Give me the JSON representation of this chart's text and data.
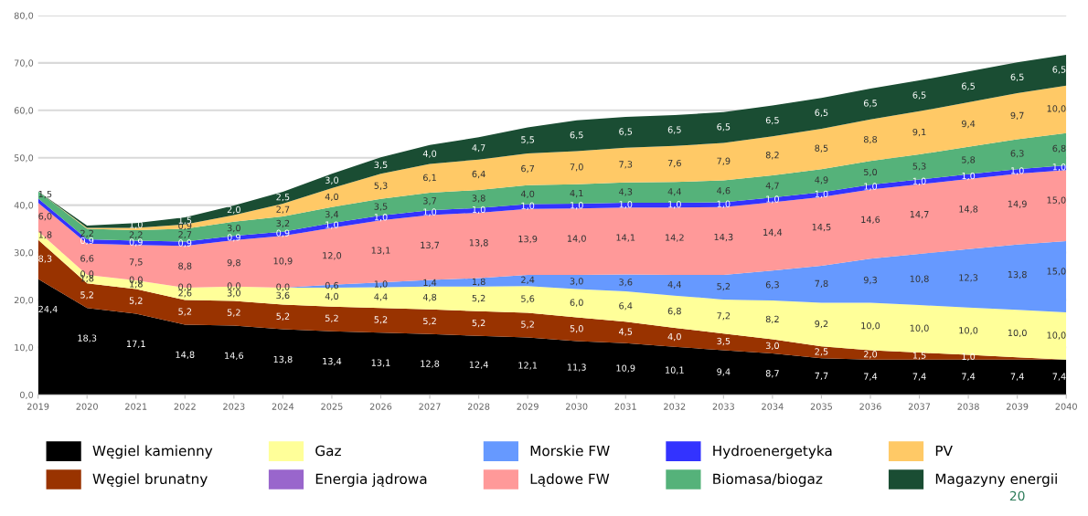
{
  "chart_data": {
    "type": "area",
    "stacked": true,
    "categories": [
      "2019",
      "2020",
      "2021",
      "2022",
      "2023",
      "2024",
      "2025",
      "2026",
      "2027",
      "2028",
      "2029",
      "2030",
      "2031",
      "2032",
      "2033",
      "2034",
      "2035",
      "2036",
      "2037",
      "2038",
      "2039",
      "2040"
    ],
    "ylim": [
      0,
      80
    ],
    "yticks": [
      {
        "value": 0,
        "label": "0,0"
      },
      {
        "value": 10,
        "label": "10,0"
      },
      {
        "value": 20,
        "label": "20,0"
      },
      {
        "value": 30,
        "label": "30,0"
      },
      {
        "value": 40,
        "label": "40,0"
      },
      {
        "value": 50,
        "label": "50,0"
      },
      {
        "value": 60,
        "label": "60,0"
      },
      {
        "value": 70,
        "label": "70,0"
      },
      {
        "value": 80,
        "label": "80,0"
      }
    ],
    "grid": "y",
    "legend": "bottom",
    "series": [
      {
        "name": "Węgiel kamienny",
        "color": "#000000",
        "values": [
          24.4,
          18.3,
          17.1,
          14.8,
          14.6,
          13.8,
          13.4,
          13.1,
          12.8,
          12.4,
          12.1,
          11.3,
          10.9,
          10.1,
          9.4,
          8.7,
          7.7,
          7.4,
          7.4,
          7.4,
          7.4,
          7.4
        ],
        "value_labels": [
          "24,4",
          "18,3",
          "17,1",
          "14,8",
          "14,6",
          "13,8",
          "13,4",
          "13,1",
          "12,8",
          "12,4",
          "12,1",
          "11,3",
          "10,9",
          "10,1",
          "9,4",
          "8,7",
          "7,7",
          "7,4",
          "7,4",
          "7,4",
          "7,4",
          "7,4"
        ]
      },
      {
        "name": "Węgiel brunatny",
        "color": "#993300",
        "values": [
          8.3,
          5.2,
          5.2,
          5.2,
          5.2,
          5.2,
          5.2,
          5.2,
          5.2,
          5.2,
          5.2,
          5.0,
          4.5,
          4.0,
          3.5,
          3.0,
          2.5,
          2.0,
          1.5,
          1.0,
          0.5,
          0.0
        ],
        "value_labels": [
          "8,3",
          "5,2",
          "5,2",
          "5,2",
          "5,2",
          "5,2",
          "5,2",
          "5,2",
          "5,2",
          "5,2",
          "5,2",
          "5,0",
          "4,5",
          "4,0",
          "3,5",
          "3,0",
          "2,5",
          "2,0",
          "1,5",
          "1,0",
          null,
          null
        ]
      },
      {
        "name": "Gaz",
        "color": "#ffff99",
        "values": [
          1.8,
          1.8,
          1.8,
          2.6,
          3.0,
          3.6,
          4.0,
          4.4,
          4.8,
          5.2,
          5.6,
          6.0,
          6.4,
          6.8,
          7.2,
          8.2,
          9.2,
          10.0,
          10.0,
          10.0,
          10.0,
          10.0
        ],
        "value_labels": [
          "1,8",
          "1,8",
          "1,8",
          "2,6",
          "3,0",
          "3,6",
          "4,0",
          "4,4",
          "4,8",
          "5,2",
          "5,6",
          "6,0",
          "6,4",
          "6,8",
          "7,2",
          "8,2",
          "9,2",
          "10,0",
          "10,0",
          "10,0",
          "10,0",
          "10,0"
        ]
      },
      {
        "name": "Energia jądrowa",
        "color": "#9966cc",
        "values": [
          null,
          null,
          null,
          null,
          null,
          null,
          null,
          null,
          null,
          null,
          null,
          null,
          null,
          null,
          null,
          null,
          null,
          null,
          null,
          null,
          null,
          null
        ],
        "value_labels": [
          null,
          null,
          null,
          null,
          null,
          null,
          null,
          null,
          null,
          null,
          null,
          null,
          null,
          null,
          null,
          null,
          null,
          null,
          null,
          null,
          null,
          null
        ]
      },
      {
        "name": "Morskie FW",
        "color": "#6699ff",
        "values": [
          0.0,
          0.0,
          0.0,
          0.0,
          0.0,
          0.0,
          0.6,
          1.0,
          1.4,
          1.8,
          2.4,
          3.0,
          3.6,
          4.4,
          5.2,
          6.3,
          7.8,
          9.3,
          10.8,
          12.3,
          13.8,
          15.0
        ],
        "value_labels": [
          null,
          "0,0",
          "0,0",
          "0,0",
          "0,0",
          "0,0",
          "0,6",
          "1,0",
          "1,4",
          "1,8",
          "2,4",
          "3,0",
          "3,6",
          "4,4",
          "5,2",
          "6,3",
          "7,8",
          "9,3",
          "10,8",
          "12,3",
          "13,8",
          "15,0"
        ]
      },
      {
        "name": "Lądowe FW",
        "color": "#ff9999",
        "values": [
          6.0,
          6.6,
          7.5,
          8.8,
          9.8,
          10.9,
          12.0,
          13.1,
          13.7,
          13.8,
          13.9,
          14.0,
          14.1,
          14.2,
          14.3,
          14.4,
          14.5,
          14.6,
          14.7,
          14.8,
          14.9,
          15.0
        ],
        "value_labels": [
          "6,0",
          "6,6",
          "7,5",
          "8,8",
          "9,8",
          "10,9",
          "12,0",
          "13,1",
          "13,7",
          "13,8",
          "13,9",
          "14,0",
          "14,1",
          "14,2",
          "14,3",
          "14,4",
          "14,5",
          "14,6",
          "14,7",
          "14,8",
          "14,9",
          "15,0"
        ]
      },
      {
        "name": "Hydroenergetyka",
        "color": "#3333ff",
        "values": [
          0.9,
          0.9,
          0.9,
          0.9,
          0.9,
          0.9,
          1.0,
          1.0,
          1.0,
          1.0,
          1.0,
          1.0,
          1.0,
          1.0,
          1.0,
          1.0,
          1.0,
          1.0,
          1.0,
          1.0,
          1.0,
          1.0
        ],
        "value_labels": [
          null,
          "0,9",
          "0,9",
          "0,9",
          "0,9",
          "0,9",
          "1,0",
          "1,0",
          "1,0",
          "1,0",
          "1,0",
          "1,0",
          "1,0",
          "1,0",
          "1,0",
          "1,0",
          "1,0",
          "1,0",
          "1,0",
          "1,0",
          "1,0",
          "1,0"
        ]
      },
      {
        "name": "Biomasa/biogaz",
        "color": "#55b27a",
        "values": [
          1.5,
          2.2,
          2.2,
          2.7,
          3.0,
          3.2,
          3.4,
          3.5,
          3.7,
          3.8,
          4.0,
          4.1,
          4.3,
          4.4,
          4.6,
          4.7,
          4.9,
          5.0,
          5.3,
          5.8,
          6.3,
          6.8
        ],
        "value_labels": [
          "1,5",
          "2,2",
          "2,2",
          "2,7",
          "3,0",
          "3,2",
          "3,4",
          "3,5",
          "3,7",
          "3,8",
          "4,0",
          "4,1",
          "4,3",
          "4,4",
          "4,6",
          "4,7",
          "4,9",
          "5,0",
          "5,3",
          "5,8",
          "6,3",
          "6,8"
        ]
      },
      {
        "name": "PV",
        "color": "#ffc966",
        "values": [
          0.0,
          0.2,
          0.5,
          0.9,
          1.4,
          2.7,
          4.0,
          5.3,
          6.1,
          6.4,
          6.7,
          7.0,
          7.3,
          7.6,
          7.9,
          8.2,
          8.5,
          8.8,
          9.1,
          9.4,
          9.7,
          10.0
        ],
        "value_labels": [
          null,
          null,
          null,
          "0,9",
          null,
          "2,7",
          "4,0",
          "5,3",
          "6,1",
          "6,4",
          "6,7",
          "7,0",
          "7,3",
          "7,6",
          "7,9",
          "8,2",
          "8,5",
          "8,8",
          "9,1",
          "9,4",
          "9,7",
          "10,0"
        ]
      },
      {
        "name": "Magazyny energii",
        "color": "#1a4d33",
        "values": [
          0.0,
          0.5,
          1.0,
          1.5,
          2.0,
          2.5,
          3.0,
          3.5,
          4.0,
          4.7,
          5.5,
          6.5,
          6.5,
          6.5,
          6.5,
          6.5,
          6.5,
          6.5,
          6.5,
          6.5,
          6.5,
          6.5
        ],
        "value_labels": [
          null,
          null,
          "1,0",
          "1,5",
          "2,0",
          "2,5",
          "3,0",
          "3,5",
          "4,0",
          "4,7",
          "5,5",
          "6,5",
          "6,5",
          "6,5",
          "6,5",
          "6,5",
          "6,5",
          "6,5",
          "6,5",
          "6,5",
          "6,5",
          "6,5"
        ]
      }
    ],
    "annotations": [
      "20"
    ]
  }
}
